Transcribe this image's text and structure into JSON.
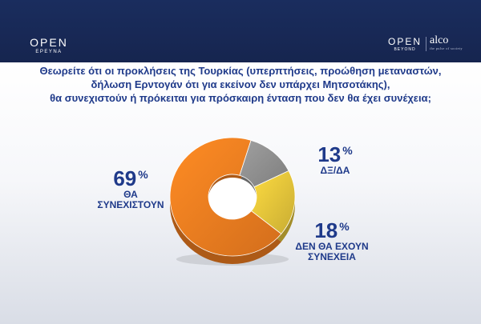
{
  "header": {
    "logo_left": {
      "main": "OPEN",
      "sub": "ΕΡΕΥΝΑ"
    },
    "logo_right_open": {
      "main": "OPEN",
      "sub": "BEYOND"
    },
    "logo_alco": {
      "main": "alco",
      "sub": "the pulse of society"
    }
  },
  "question": {
    "line1": "Θεωρείτε ότι οι προκλήσεις της Τουρκίας (υπερπτήσεις, προώθηση μεταναστών,",
    "line2": "δήλωση Ερντογάν ότι για εκείνον δεν υπάρχει Μητσοτάκης),",
    "line3": "θα συνεχιστούν ή πρόκειται για πρόσκαιρη ένταση που δεν θα έχει συνέχεια;"
  },
  "chart_data": {
    "type": "pie",
    "donut": true,
    "slices": [
      {
        "label": "ΘΑ ΣΥΝΕΧΙΣΤΟΥΝ",
        "label_lines": [
          "ΘΑ",
          "ΣΥΝΕΧΙΣΤΟΥΝ"
        ],
        "value": 69,
        "color": "#f07d20"
      },
      {
        "label": "ΔΞ/ΔΑ",
        "label_lines": [
          "ΔΞ/ΔΑ"
        ],
        "value": 13,
        "color": "#8f8f8f"
      },
      {
        "label": "ΔΕΝ ΘΑ ΕΧΟΥΝ ΣΥΝΕΧΕΙΑ",
        "label_lines": [
          "ΔΕΝ ΘΑ ΕΧΟΥΝ",
          "ΣΥΝΕΧΕΙΑ"
        ],
        "value": 18,
        "color": "#e3c43a"
      }
    ],
    "unit": "%"
  }
}
